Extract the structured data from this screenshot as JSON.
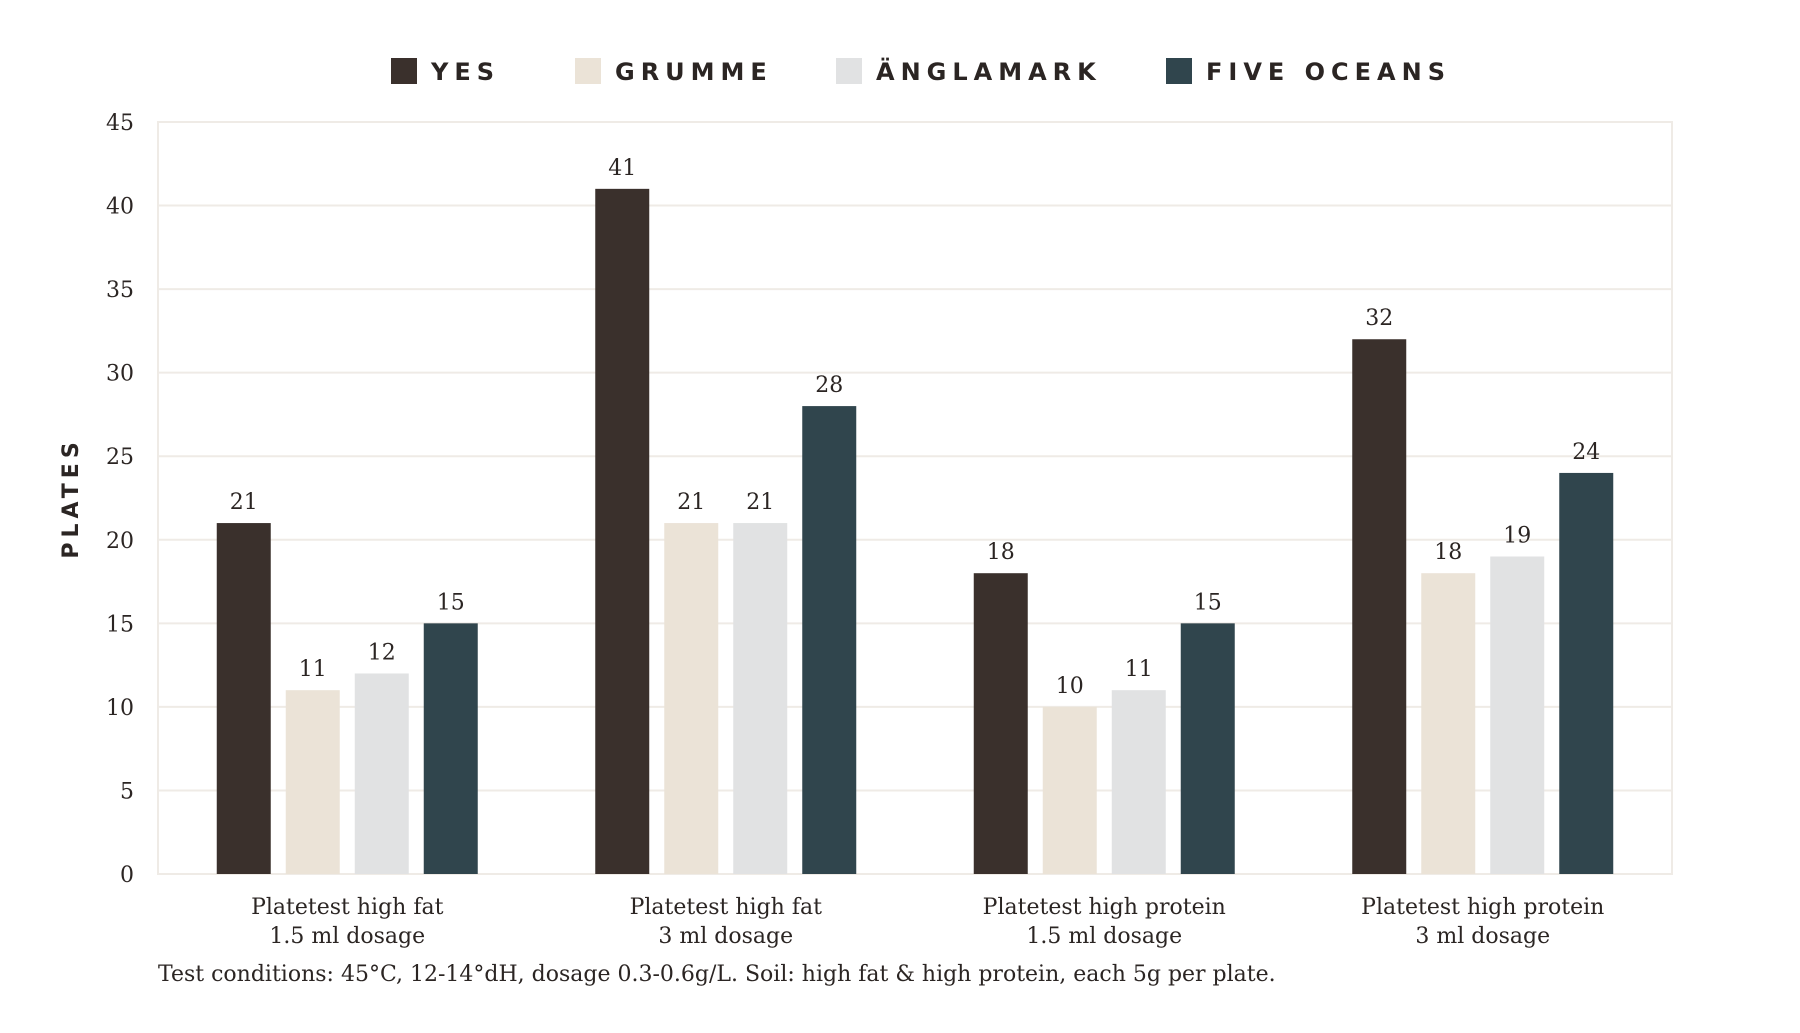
{
  "colors": {
    "yes": "#3a302c",
    "grumme": "#ebe3d7",
    "anglamark": "#e1e2e3",
    "five_oceans": "#30454d",
    "grid": "#efebe6",
    "text": "#2b2523"
  },
  "chart_data": {
    "type": "bar",
    "title": "",
    "xlabel": "",
    "ylabel": "PLATES",
    "ylim": [
      0,
      45
    ],
    "yticks": [
      0,
      5,
      10,
      15,
      20,
      25,
      30,
      35,
      40,
      45
    ],
    "grid": true,
    "legend_position": "top-center",
    "categories": [
      [
        "Platetest high fat",
        "1.5 ml dosage"
      ],
      [
        "Platetest high fat",
        "3 ml dosage"
      ],
      [
        "Platetest high protein",
        "1.5 ml dosage"
      ],
      [
        "Platetest high protein",
        "3 ml dosage"
      ]
    ],
    "series": [
      {
        "name": "YES",
        "color": "#3a302c",
        "values": [
          21,
          41,
          18,
          32
        ]
      },
      {
        "name": "GRUMME",
        "color": "#ebe3d7",
        "values": [
          11,
          21,
          10,
          18
        ]
      },
      {
        "name": "ÄNGLAMARK",
        "color": "#e1e2e3",
        "values": [
          12,
          21,
          11,
          19
        ]
      },
      {
        "name": "FIVE OCEANS",
        "color": "#30454d",
        "values": [
          15,
          28,
          15,
          24
        ]
      }
    ]
  },
  "footnote": "Test conditions: 45°C, 12-14°dH, dosage 0.3-0.6g/L. Soil: high fat & high protein, each 5g per plate."
}
